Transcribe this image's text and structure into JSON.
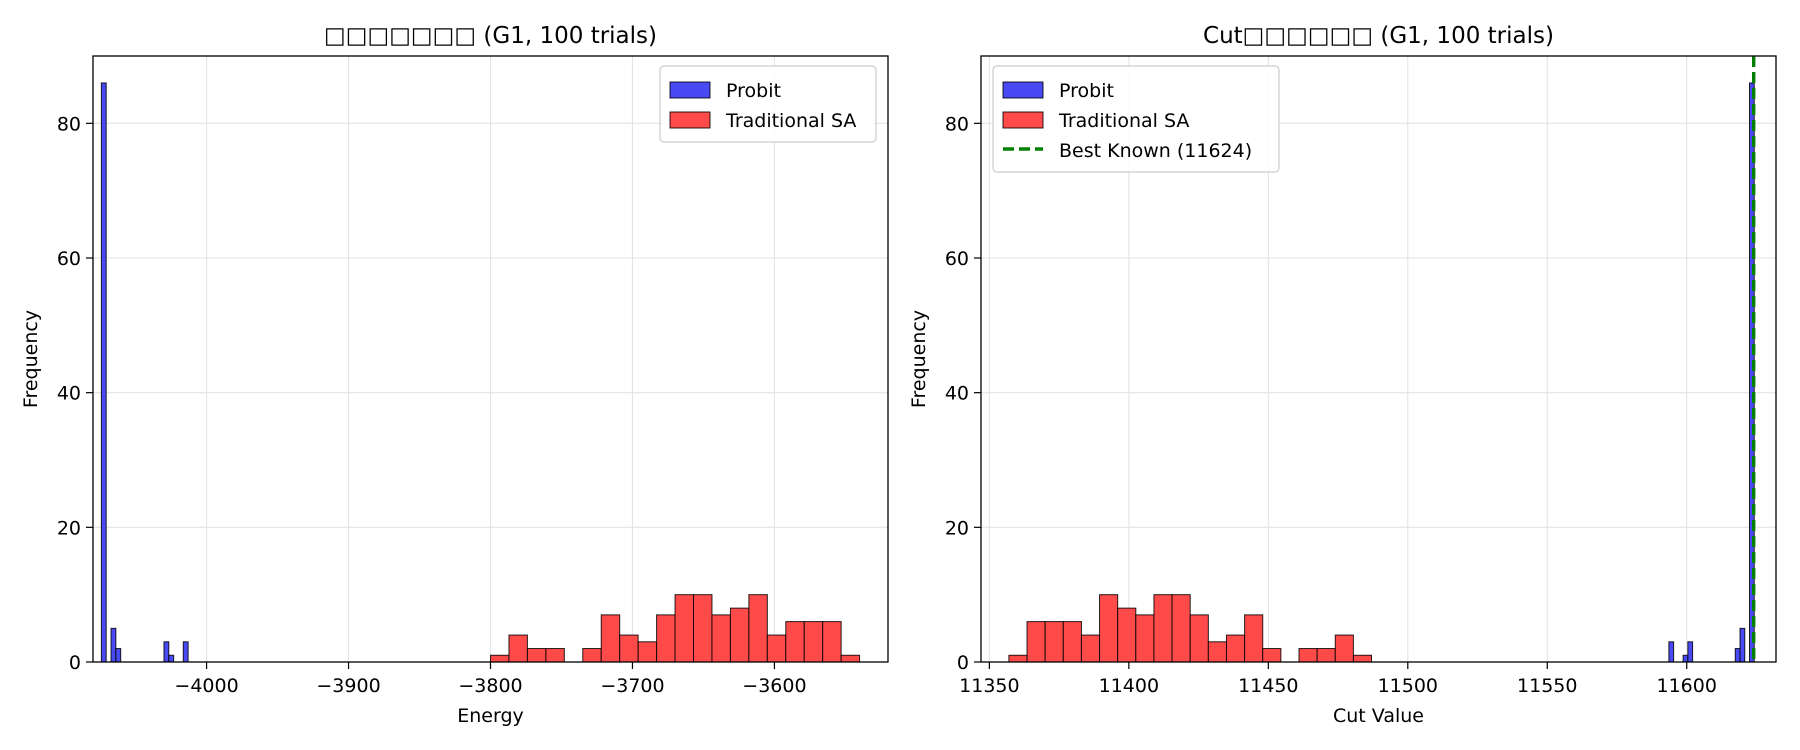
{
  "chart_data": [
    {
      "type": "bar",
      "title": "□□□□□□□ (G1, 100 trials)",
      "xlabel": "Energy",
      "ylabel": "Frequency",
      "xlim": [
        -4080,
        -3520
      ],
      "ylim": [
        0,
        90
      ],
      "xticks": [
        -4000,
        -3900,
        -3800,
        -3700,
        -3600
      ],
      "xtick_labels": [
        "−4000",
        "−3900",
        "−3800",
        "−3700",
        "−3600"
      ],
      "yticks": [
        0,
        20,
        40,
        60,
        80
      ],
      "ytick_labels": [
        "0",
        "20",
        "40",
        "60",
        "80"
      ],
      "grid": true,
      "legend_position": "top-right",
      "series": [
        {
          "name": "Probit",
          "color": "#4a4af5",
          "bin_width": 3.4,
          "bins": [
            {
              "x": -4074.1,
              "count": 86
            },
            {
              "x": -4067.3,
              "count": 5
            },
            {
              "x": -4063.9,
              "count": 2
            },
            {
              "x": -4030.0,
              "count": 3
            },
            {
              "x": -4026.6,
              "count": 1
            },
            {
              "x": -4016.4,
              "count": 3
            }
          ]
        },
        {
          "name": "Traditional SA",
          "color": "#ff4a4a",
          "bin_width": 13.0,
          "bins": [
            {
              "x": -3800,
              "count": 1
            },
            {
              "x": -3787,
              "count": 4
            },
            {
              "x": -3774,
              "count": 2
            },
            {
              "x": -3761,
              "count": 2
            },
            {
              "x": -3748,
              "count": 0
            },
            {
              "x": -3735,
              "count": 2
            },
            {
              "x": -3722,
              "count": 7
            },
            {
              "x": -3709,
              "count": 4
            },
            {
              "x": -3696,
              "count": 3
            },
            {
              "x": -3683,
              "count": 7
            },
            {
              "x": -3670,
              "count": 10
            },
            {
              "x": -3657,
              "count": 10
            },
            {
              "x": -3644,
              "count": 7
            },
            {
              "x": -3631,
              "count": 8
            },
            {
              "x": -3618,
              "count": 10
            },
            {
              "x": -3605,
              "count": 4
            },
            {
              "x": -3592,
              "count": 6
            },
            {
              "x": -3579,
              "count": 6
            },
            {
              "x": -3566,
              "count": 6
            },
            {
              "x": -3553,
              "count": 1
            }
          ]
        }
      ]
    },
    {
      "type": "bar",
      "title": "Cut□□□□□□ (G1, 100 trials)",
      "xlabel": "Cut Value",
      "ylabel": "Frequency",
      "xlim": [
        11347,
        11632
      ],
      "ylim": [
        0,
        90
      ],
      "xticks": [
        11350,
        11400,
        11450,
        11500,
        11550,
        11600
      ],
      "xtick_labels": [
        "11350",
        "11400",
        "11450",
        "11500",
        "11550",
        "11600"
      ],
      "yticks": [
        0,
        20,
        40,
        60,
        80
      ],
      "ytick_labels": [
        "0",
        "20",
        "40",
        "60",
        "80"
      ],
      "grid": true,
      "legend_position": "top-left",
      "series": [
        {
          "name": "Probit",
          "color": "#4a4af5",
          "bin_width": 1.7,
          "bins": [
            {
              "x": 11593.6,
              "count": 3
            },
            {
              "x": 11598.7,
              "count": 1
            },
            {
              "x": 11600.4,
              "count": 3
            },
            {
              "x": 11617.4,
              "count": 2
            },
            {
              "x": 11619.1,
              "count": 5
            },
            {
              "x": 11622.5,
              "count": 86
            }
          ]
        },
        {
          "name": "Traditional SA",
          "color": "#ff4a4a",
          "bin_width": 6.5,
          "bins": [
            {
              "x": 11357.0,
              "count": 1
            },
            {
              "x": 11363.5,
              "count": 6
            },
            {
              "x": 11370.0,
              "count": 6
            },
            {
              "x": 11376.5,
              "count": 6
            },
            {
              "x": 11383.0,
              "count": 4
            },
            {
              "x": 11389.5,
              "count": 10
            },
            {
              "x": 11396.0,
              "count": 8
            },
            {
              "x": 11402.5,
              "count": 7
            },
            {
              "x": 11409.0,
              "count": 10
            },
            {
              "x": 11415.5,
              "count": 10
            },
            {
              "x": 11422.0,
              "count": 7
            },
            {
              "x": 11428.5,
              "count": 3
            },
            {
              "x": 11435.0,
              "count": 4
            },
            {
              "x": 11441.5,
              "count": 7
            },
            {
              "x": 11448.0,
              "count": 2
            },
            {
              "x": 11454.5,
              "count": 0
            },
            {
              "x": 11461.0,
              "count": 2
            },
            {
              "x": 11467.5,
              "count": 2
            },
            {
              "x": 11474.0,
              "count": 4
            },
            {
              "x": 11480.5,
              "count": 1
            }
          ]
        },
        {
          "name": "Best Known (11624)",
          "type": "vline",
          "color": "#008000",
          "x": 11624
        }
      ]
    }
  ]
}
